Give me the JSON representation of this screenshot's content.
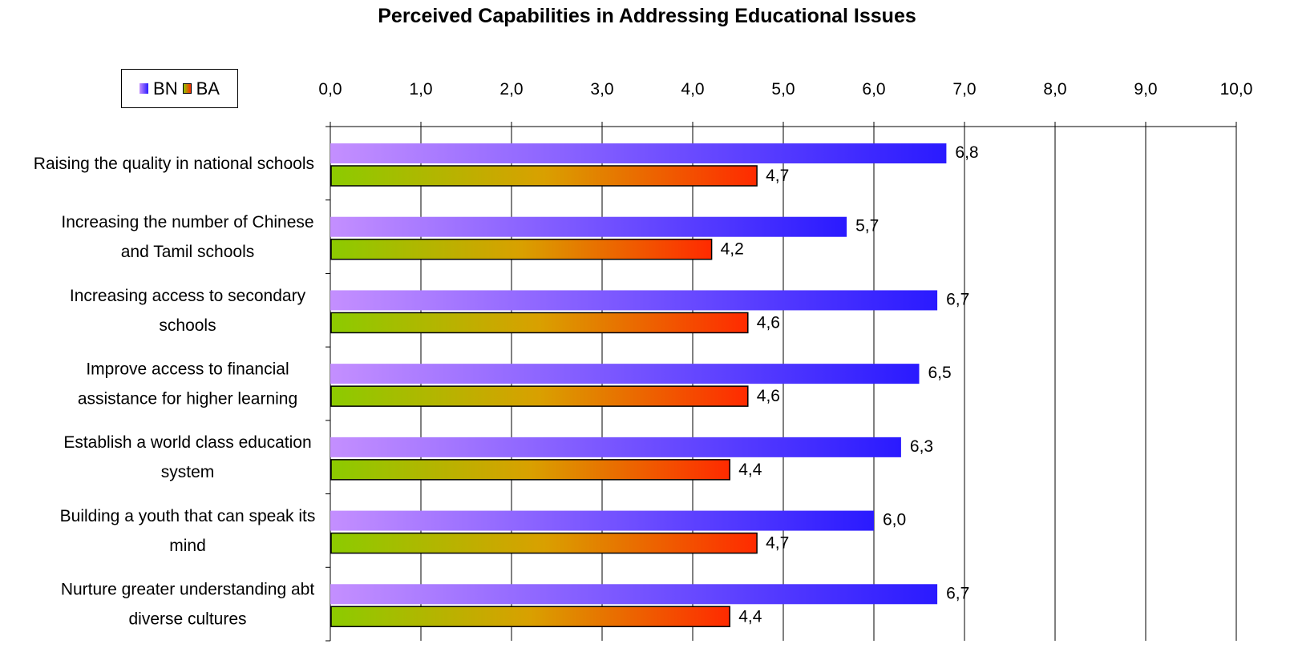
{
  "chart_data": {
    "type": "bar",
    "orientation": "horizontal",
    "title": "Perceived Capabilities in Addressing Educational Issues",
    "xlim": [
      0,
      10
    ],
    "x_ticks": [
      "0,0",
      "1,0",
      "2,0",
      "3,0",
      "4,0",
      "5,0",
      "6,0",
      "7,0",
      "8,0",
      "9,0",
      "10,0"
    ],
    "x_axis_position": "top",
    "grid": true,
    "legend_position": "top-left",
    "categories": [
      [
        "Raising the quality in national schools"
      ],
      [
        "Increasing the number of Chinese",
        "and Tamil schools"
      ],
      [
        "Increasing access to secondary",
        "schools"
      ],
      [
        "Improve access to financial",
        "assistance for higher learning"
      ],
      [
        "Establish a world class education",
        "system"
      ],
      [
        "Building a youth that can speak its",
        "mind"
      ],
      [
        "Nurture greater understanding abt",
        "diverse cultures"
      ]
    ],
    "series": [
      {
        "name": "BN",
        "values": [
          6.8,
          5.7,
          6.7,
          6.5,
          6.3,
          6.0,
          6.7
        ],
        "labels": [
          "6,8",
          "5,7",
          "6,7",
          "6,5",
          "6,3",
          "6,0",
          "6,7"
        ],
        "gradient": [
          "#c48fff",
          "#2a1aff"
        ]
      },
      {
        "name": "BA",
        "values": [
          4.7,
          4.2,
          4.6,
          4.6,
          4.4,
          4.7,
          4.4
        ],
        "labels": [
          "4,7",
          "4,2",
          "4,6",
          "4,6",
          "4,4",
          "4,7",
          "4,4"
        ],
        "gradient": [
          "#8ccb00",
          "#ff2a00"
        ]
      }
    ]
  },
  "legend": {
    "bn": "BN",
    "ba": "BA"
  },
  "colors": {
    "grid": "#000000",
    "axis": "#000000"
  }
}
